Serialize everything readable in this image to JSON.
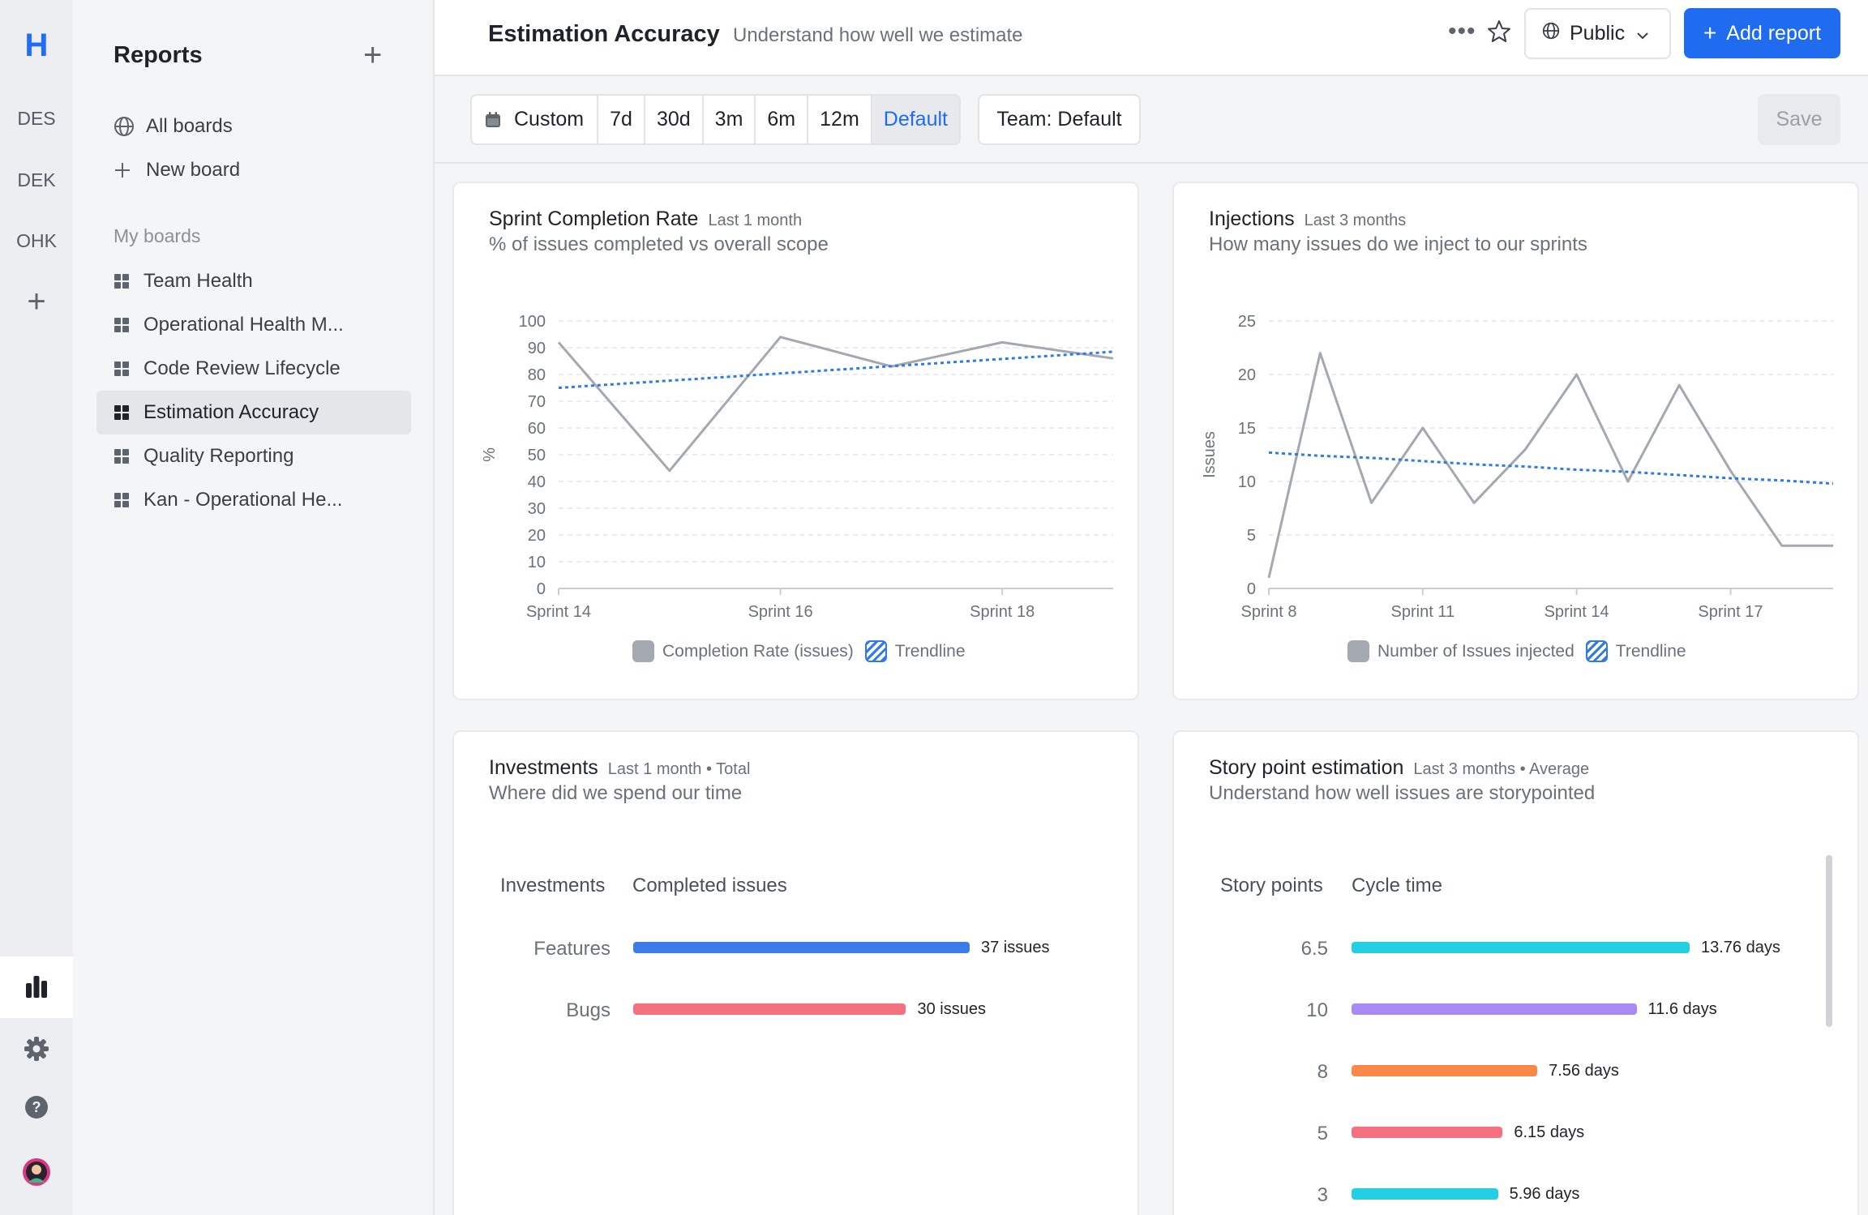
{
  "rail": {
    "logo": "H",
    "workspaces": [
      "DES",
      "DEK",
      "OHK"
    ],
    "add_icon": "+"
  },
  "sidebar": {
    "title": "Reports",
    "add_icon": "+",
    "all_boards": "All boards",
    "new_board": "New board",
    "section": "My boards",
    "items": [
      {
        "label": "Team Health"
      },
      {
        "label": "Operational Health M..."
      },
      {
        "label": "Code Review Lifecycle"
      },
      {
        "label": "Estimation Accuracy"
      },
      {
        "label": "Quality Reporting"
      },
      {
        "label": "Kan - Operational He..."
      }
    ]
  },
  "header": {
    "title": "Estimation Accuracy",
    "subtitle": "Understand how well we estimate",
    "more": "•••",
    "visibility": "Public",
    "add_report": "Add report",
    "add_icon": "+"
  },
  "toolbar": {
    "ranges": [
      "Custom",
      "7d",
      "30d",
      "3m",
      "6m",
      "12m",
      "Default"
    ],
    "selected_range": "Default",
    "team": "Team: Default",
    "save": "Save"
  },
  "colors": {
    "brand": "#1f6cf0",
    "line": "#a4a8b0",
    "trend": "#2f7ae5"
  },
  "cards": {
    "completion": {
      "title": "Sprint Completion Rate",
      "meta": "Last 1 month",
      "subtitle": "% of issues completed vs overall scope"
    },
    "injections": {
      "title": "Injections",
      "meta": "Last 3 months",
      "subtitle": "How many issues do we inject to our sprints"
    },
    "investments": {
      "title": "Investments",
      "meta": "Last 1 month • Total",
      "subtitle": "Where did we spend our time",
      "col1": "Investments",
      "col2": "Completed issues"
    },
    "story": {
      "title": "Story point estimation",
      "meta": "Last 3 months • Average",
      "subtitle": "Understand how well issues are storypointed",
      "col1": "Story points",
      "col2": "Cycle time"
    }
  },
  "chart_data": [
    {
      "type": "line",
      "ylabel": "%",
      "ylim": [
        0,
        100
      ],
      "yticks": [
        0,
        10,
        20,
        30,
        40,
        50,
        60,
        70,
        80,
        90,
        100
      ],
      "x": [
        14,
        15,
        16,
        17,
        18,
        19
      ],
      "xtick_labels": {
        "14": "Sprint 14",
        "16": "Sprint 16",
        "18": "Sprint 18"
      },
      "xlim": [
        14,
        19
      ],
      "series": [
        {
          "name": "Completion Rate (issues)",
          "values": [
            92,
            44,
            94,
            83,
            92,
            86
          ]
        },
        {
          "name": "Trendline",
          "values": [
            75,
            77.7,
            80.4,
            83.1,
            85.8,
            88.5
          ],
          "style": "dotted"
        }
      ],
      "grid": true,
      "legend": "bottom"
    },
    {
      "type": "line",
      "ylabel": "Issues",
      "ylim": [
        0,
        25
      ],
      "yticks": [
        0,
        5,
        10,
        15,
        20,
        25
      ],
      "x": [
        8,
        9,
        10,
        11,
        12,
        13,
        14,
        15,
        16,
        17,
        18,
        19
      ],
      "xtick_labels": {
        "8": "Sprint 8",
        "11": "Sprint 11",
        "14": "Sprint 14",
        "17": "Sprint 17"
      },
      "xlim": [
        8,
        19
      ],
      "series": [
        {
          "name": "Number of Issues injected",
          "values": [
            1,
            22,
            8,
            15,
            8,
            13,
            20,
            10,
            19,
            11,
            4,
            4
          ]
        },
        {
          "name": "Trendline",
          "values": [
            12.7,
            12.4,
            12.2,
            11.9,
            11.6,
            11.4,
            11.1,
            10.9,
            10.6,
            10.3,
            10.1,
            9.8
          ],
          "style": "dotted"
        }
      ],
      "grid": true,
      "legend": "bottom"
    },
    {
      "type": "bar",
      "orientation": "horizontal",
      "categories": [
        "Features",
        "Bugs"
      ],
      "values": [
        37,
        30
      ],
      "value_labels": [
        "37 issues",
        "30 issues"
      ],
      "colors": [
        "#3b7ce8",
        "#f5707f"
      ]
    },
    {
      "type": "bar",
      "orientation": "horizontal",
      "categories": [
        "6.5",
        "10",
        "8",
        "5",
        "3"
      ],
      "values": [
        13.76,
        11.6,
        7.56,
        6.15,
        5.96
      ],
      "value_labels": [
        "13.76 days",
        "11.6 days",
        "7.56 days",
        "6.15 days",
        "5.96 days"
      ],
      "colors": [
        "#23cfe2",
        "#a98af5",
        "#fb8749",
        "#f5707f",
        "#23cfe2"
      ]
    }
  ]
}
